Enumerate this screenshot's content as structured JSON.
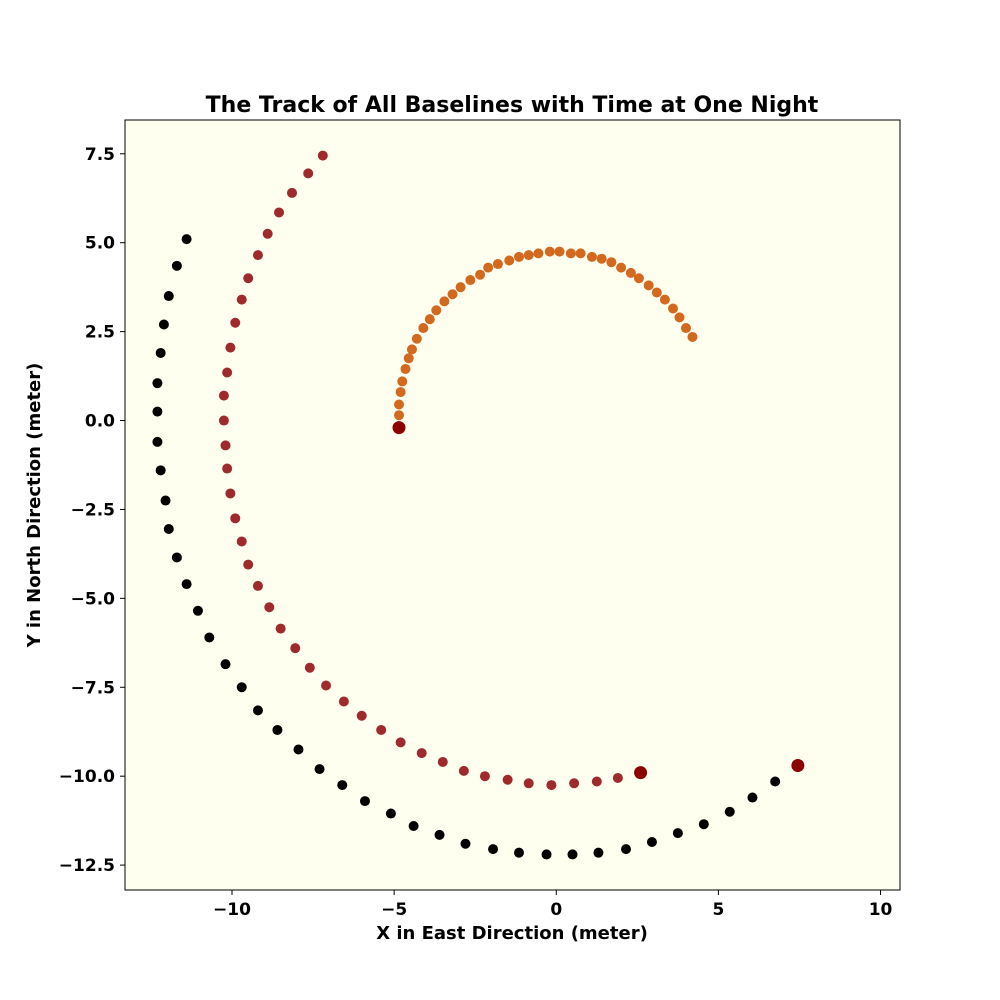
{
  "chart_data": {
    "type": "scatter",
    "title": "The Track of All Baselines with Time at One Night",
    "xlabel": "X in East Direction (meter)",
    "ylabel": "Y in North Direction (meter)",
    "xlim": [
      -13.3,
      10.6
    ],
    "ylim": [
      -13.2,
      8.45
    ],
    "xticks": [
      -10,
      -5,
      0,
      5,
      10
    ],
    "xtick_labels": [
      "−10",
      "−5",
      "0",
      "5",
      "10"
    ],
    "yticks": [
      7.5,
      5.0,
      2.5,
      0.0,
      -2.5,
      -5.0,
      -7.5,
      -10.0,
      -12.5
    ],
    "ytick_labels": [
      "7.5",
      "5.0",
      "2.5",
      "0.0",
      "−2.5",
      "−5.0",
      "−7.5",
      "−10.0",
      "−12.5"
    ],
    "grid": false,
    "background": "#fffff0",
    "series": [
      {
        "color": "#000000",
        "points": [
          [
            -11.4,
            5.1
          ],
          [
            -11.7,
            4.35
          ],
          [
            -11.95,
            3.5
          ],
          [
            -12.1,
            2.7
          ],
          [
            -12.2,
            1.9
          ],
          [
            -12.3,
            1.05
          ],
          [
            -12.3,
            0.25
          ],
          [
            -12.3,
            -0.6
          ],
          [
            -12.2,
            -1.4
          ],
          [
            -12.05,
            -2.25
          ],
          [
            -11.95,
            -3.05
          ],
          [
            -11.7,
            -3.85
          ],
          [
            -11.4,
            -4.6
          ],
          [
            -11.05,
            -5.35
          ],
          [
            -10.7,
            -6.1
          ],
          [
            -10.2,
            -6.85
          ],
          [
            -9.7,
            -7.5
          ],
          [
            -9.2,
            -8.15
          ],
          [
            -8.6,
            -8.7
          ],
          [
            -7.95,
            -9.25
          ],
          [
            -7.3,
            -9.8
          ],
          [
            -6.6,
            -10.25
          ],
          [
            -5.9,
            -10.7
          ],
          [
            -5.1,
            -11.05
          ],
          [
            -4.4,
            -11.4
          ],
          [
            -3.6,
            -11.65
          ],
          [
            -2.8,
            -11.9
          ],
          [
            -1.95,
            -12.05
          ],
          [
            -1.15,
            -12.15
          ],
          [
            -0.3,
            -12.2
          ],
          [
            0.5,
            -12.2
          ],
          [
            1.3,
            -12.15
          ],
          [
            2.15,
            -12.05
          ],
          [
            2.95,
            -11.85
          ],
          [
            3.75,
            -11.6
          ],
          [
            4.55,
            -11.35
          ],
          [
            5.35,
            -11.0
          ],
          [
            6.05,
            -10.6
          ],
          [
            6.75,
            -10.15
          ]
        ],
        "marker_size": 5
      },
      {
        "color": "#9e2a2b",
        "points": [
          [
            -7.2,
            7.45
          ],
          [
            -7.65,
            6.95
          ],
          [
            -8.15,
            6.4
          ],
          [
            -8.55,
            5.85
          ],
          [
            -8.9,
            5.25
          ],
          [
            -9.2,
            4.65
          ],
          [
            -9.5,
            4.0
          ],
          [
            -9.7,
            3.4
          ],
          [
            -9.9,
            2.75
          ],
          [
            -10.05,
            2.05
          ],
          [
            -10.15,
            1.35
          ],
          [
            -10.25,
            0.7
          ],
          [
            -10.25,
            0.0
          ],
          [
            -10.2,
            -0.7
          ],
          [
            -10.15,
            -1.35
          ],
          [
            -10.05,
            -2.05
          ],
          [
            -9.9,
            -2.75
          ],
          [
            -9.7,
            -3.4
          ],
          [
            -9.5,
            -4.05
          ],
          [
            -9.2,
            -4.65
          ],
          [
            -8.85,
            -5.25
          ],
          [
            -8.5,
            -5.85
          ],
          [
            -8.05,
            -6.4
          ],
          [
            -7.6,
            -6.95
          ],
          [
            -7.1,
            -7.45
          ],
          [
            -6.55,
            -7.9
          ],
          [
            -6.0,
            -8.3
          ],
          [
            -5.4,
            -8.7
          ],
          [
            -4.8,
            -9.05
          ],
          [
            -4.15,
            -9.35
          ],
          [
            -3.5,
            -9.6
          ],
          [
            -2.85,
            -9.85
          ],
          [
            -2.2,
            -10.0
          ],
          [
            -1.5,
            -10.1
          ],
          [
            -0.85,
            -10.2
          ],
          [
            -0.15,
            -10.25
          ],
          [
            0.55,
            -10.2
          ],
          [
            1.25,
            -10.15
          ],
          [
            1.9,
            -10.05
          ]
        ],
        "marker_size": 5
      },
      {
        "color": "#d2691e",
        "points": [
          [
            4.2,
            2.35
          ],
          [
            4.0,
            2.6
          ],
          [
            3.8,
            2.9
          ],
          [
            3.6,
            3.15
          ],
          [
            3.35,
            3.4
          ],
          [
            3.1,
            3.6
          ],
          [
            2.85,
            3.8
          ],
          [
            2.55,
            4.0
          ],
          [
            2.3,
            4.15
          ],
          [
            2.0,
            4.3
          ],
          [
            1.7,
            4.45
          ],
          [
            1.4,
            4.55
          ],
          [
            1.1,
            4.6
          ],
          [
            0.75,
            4.7
          ],
          [
            0.45,
            4.7
          ],
          [
            0.1,
            4.75
          ],
          [
            -0.2,
            4.75
          ],
          [
            -0.55,
            4.7
          ],
          [
            -0.85,
            4.65
          ],
          [
            -1.15,
            4.6
          ],
          [
            -1.45,
            4.5
          ],
          [
            -1.8,
            4.4
          ],
          [
            -2.1,
            4.3
          ],
          [
            -2.35,
            4.1
          ],
          [
            -2.65,
            3.95
          ],
          [
            -2.95,
            3.75
          ],
          [
            -3.2,
            3.55
          ],
          [
            -3.45,
            3.35
          ],
          [
            -3.7,
            3.1
          ],
          [
            -3.9,
            2.85
          ],
          [
            -4.1,
            2.6
          ],
          [
            -4.3,
            2.3
          ],
          [
            -4.45,
            2.0
          ],
          [
            -4.55,
            1.75
          ],
          [
            -4.65,
            1.45
          ],
          [
            -4.75,
            1.1
          ],
          [
            -4.8,
            0.8
          ],
          [
            -4.85,
            0.45
          ],
          [
            -4.85,
            0.15
          ]
        ],
        "marker_size": 5
      },
      {
        "color": "#8b0000",
        "points": [
          [
            -4.85,
            -0.2
          ],
          [
            2.6,
            -9.9
          ],
          [
            7.45,
            -9.7
          ]
        ],
        "marker_size": 6.5
      }
    ]
  }
}
